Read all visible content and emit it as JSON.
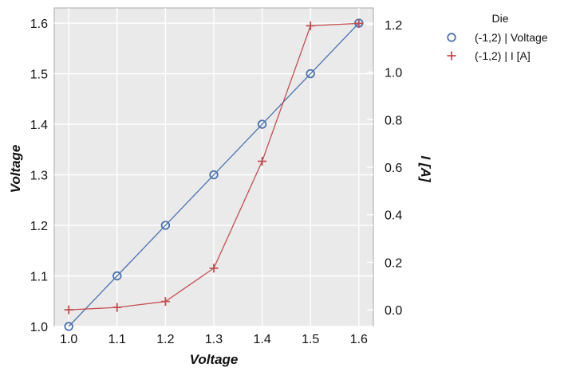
{
  "chart_data": {
    "type": "line",
    "x": [
      1.0,
      1.1,
      1.2,
      1.3,
      1.4,
      1.5,
      1.6
    ],
    "xlabel": "Voltage",
    "xlim": [
      0.97,
      1.63
    ],
    "xticks": [
      "1.0",
      "1.1",
      "1.2",
      "1.3",
      "1.4",
      "1.5",
      "1.6"
    ],
    "ylabel_left": "Voltage",
    "ylim_left": [
      1.0,
      1.63
    ],
    "yticks_left": [
      "1.0",
      "1.1",
      "1.2",
      "1.3",
      "1.4",
      "1.5",
      "1.6"
    ],
    "ylabel_right": "I [A]",
    "ylim_right": [
      -0.07,
      1.27
    ],
    "yticks_right": [
      "0.0",
      "0.2",
      "0.4",
      "0.6",
      "0.8",
      "1.0",
      "1.2"
    ],
    "grid": true,
    "legend": {
      "title": "Die",
      "placement": "outside-top-right",
      "entries": [
        "(-1,2) | Voltage",
        "(-1,2) | I [A]"
      ]
    },
    "series": [
      {
        "name": "(-1,2) | Voltage",
        "axis": "left",
        "marker": "circle",
        "color": "#4c72b0",
        "values": [
          1.0,
          1.1,
          1.2,
          1.3,
          1.4,
          1.5,
          1.6
        ]
      },
      {
        "name": "(-1,2) | I [A]",
        "axis": "right",
        "marker": "plus",
        "color": "#c44e52",
        "values": [
          0.0,
          0.01,
          0.035,
          0.175,
          0.625,
          1.195,
          1.205
        ]
      }
    ]
  }
}
